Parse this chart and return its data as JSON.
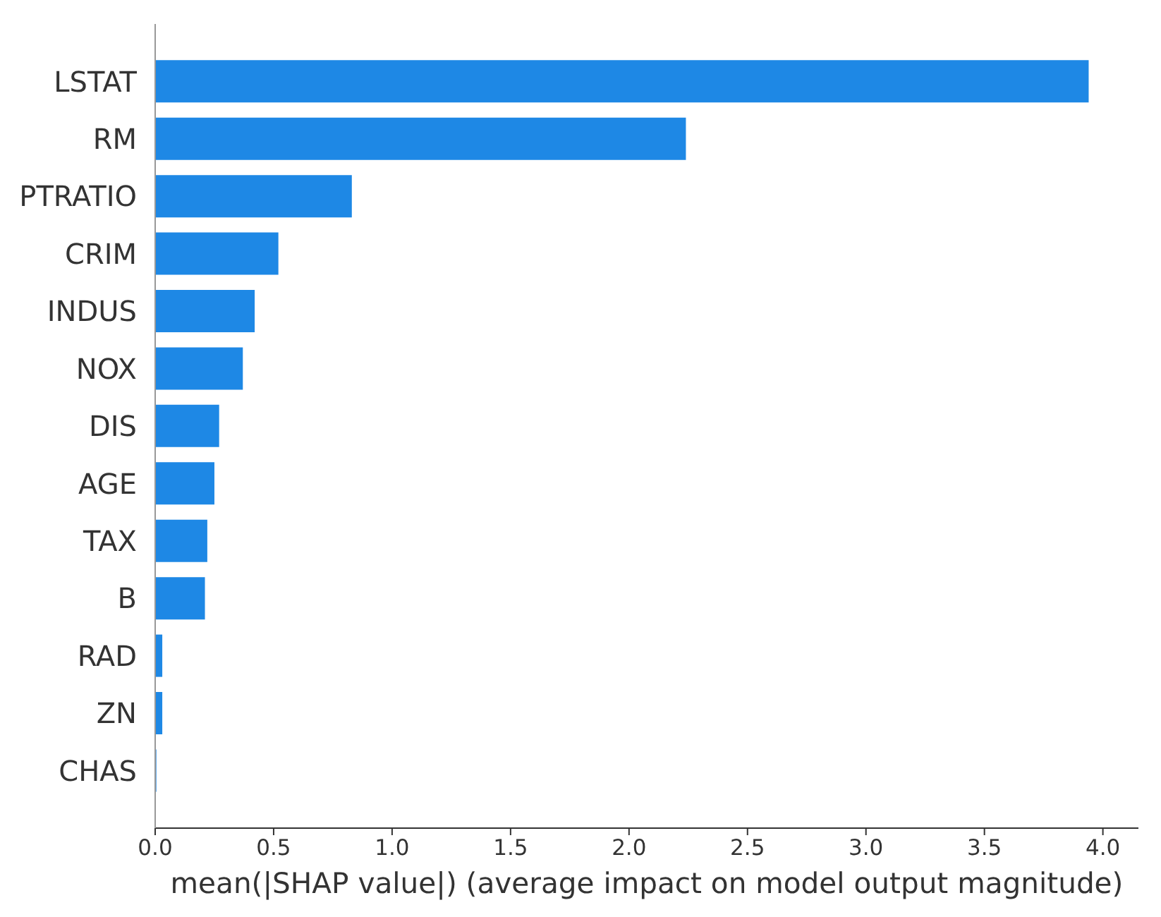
{
  "chart_data": {
    "type": "bar",
    "orientation": "horizontal",
    "categories": [
      "LSTAT",
      "RM",
      "PTRATIO",
      "CRIM",
      "INDUS",
      "NOX",
      "DIS",
      "AGE",
      "TAX",
      "B",
      "RAD",
      "ZN",
      "CHAS"
    ],
    "values": [
      3.94,
      2.24,
      0.83,
      0.52,
      0.42,
      0.37,
      0.27,
      0.25,
      0.22,
      0.21,
      0.03,
      0.03,
      0.005
    ],
    "color": "#1e88e5",
    "xlabel": "mean(|SHAP value|) (average impact on model output magnitude)",
    "xlim": [
      0,
      4.15
    ],
    "xticks": [
      {
        "value": 0,
        "label": "0.0"
      },
      0.5,
      {
        "value": 1,
        "label": "1.0"
      },
      1.5,
      {
        "value": 2,
        "label": "2.0"
      },
      2.5,
      {
        "value": 3,
        "label": "3.0"
      },
      3.5,
      {
        "value": 4,
        "label": "4.0"
      }
    ]
  }
}
